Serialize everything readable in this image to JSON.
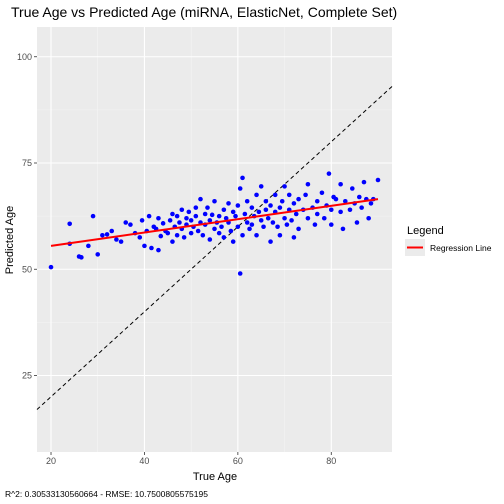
{
  "chart_data": {
    "type": "scatter",
    "title": "True Age vs Predicted Age (miRNA, ElasticNet, Complete Set)",
    "xlabel": "True Age",
    "ylabel": "Predicted Age",
    "xlim": [
      17,
      93
    ],
    "ylim": [
      7,
      107
    ],
    "x_ticks": [
      20,
      40,
      60,
      80
    ],
    "y_ticks": [
      25,
      50,
      75,
      100
    ],
    "grid": true,
    "point_color": "#0000ff",
    "points": [
      [
        20,
        50.5
      ],
      [
        24,
        60.7
      ],
      [
        24,
        56
      ],
      [
        26,
        53
      ],
      [
        26.5,
        52.8
      ],
      [
        28,
        55.5
      ],
      [
        29,
        62.5
      ],
      [
        30,
        53.5
      ],
      [
        31,
        58
      ],
      [
        32,
        58.2
      ],
      [
        33,
        59
      ],
      [
        34,
        57
      ],
      [
        35,
        56.5
      ],
      [
        36,
        61
      ],
      [
        37,
        60.5
      ],
      [
        38,
        58.5
      ],
      [
        39,
        57.5
      ],
      [
        39.5,
        61.5
      ],
      [
        40,
        55.5
      ],
      [
        40.5,
        59
      ],
      [
        41,
        62.5
      ],
      [
        41.5,
        55
      ],
      [
        42,
        60
      ],
      [
        42.5,
        59.5
      ],
      [
        43,
        54.5
      ],
      [
        43,
        62
      ],
      [
        43.5,
        57.8
      ],
      [
        44,
        60.8
      ],
      [
        44.5,
        59
      ],
      [
        45,
        58.5
      ],
      [
        45.5,
        61.5
      ],
      [
        46,
        63
      ],
      [
        46,
        56.5
      ],
      [
        46.5,
        60
      ],
      [
        47,
        62.5
      ],
      [
        47,
        58
      ],
      [
        47.5,
        61
      ],
      [
        48,
        59.5
      ],
      [
        48,
        64
      ],
      [
        48.5,
        57.5
      ],
      [
        49,
        62
      ],
      [
        49,
        60.5
      ],
      [
        49.5,
        63.5
      ],
      [
        50,
        58.5
      ],
      [
        50,
        61.5
      ],
      [
        50.5,
        60
      ],
      [
        51,
        64.5
      ],
      [
        51,
        62.5
      ],
      [
        51.5,
        59
      ],
      [
        52,
        61
      ],
      [
        52,
        66.5
      ],
      [
        52.5,
        58
      ],
      [
        53,
        63
      ],
      [
        53,
        60.5
      ],
      [
        53.5,
        64.5
      ],
      [
        54,
        57
      ],
      [
        54,
        61.5
      ],
      [
        54.5,
        62.8
      ],
      [
        55,
        59.5
      ],
      [
        55,
        66
      ],
      [
        55.5,
        61
      ],
      [
        56,
        62.5
      ],
      [
        56,
        58.5
      ],
      [
        56.5,
        60
      ],
      [
        57,
        64
      ],
      [
        57,
        57.5
      ],
      [
        57.5,
        62
      ],
      [
        58,
        61
      ],
      [
        58,
        65.5
      ],
      [
        58.5,
        59
      ],
      [
        59,
        63.5
      ],
      [
        59,
        56.5
      ],
      [
        59.5,
        62.5
      ],
      [
        60,
        60
      ],
      [
        60,
        65
      ],
      [
        60.5,
        49
      ],
      [
        60.5,
        69
      ],
      [
        61,
        71.5
      ],
      [
        61,
        58
      ],
      [
        61.5,
        63
      ],
      [
        62,
        61
      ],
      [
        62,
        66
      ],
      [
        62.5,
        59.5
      ],
      [
        63,
        64.5
      ],
      [
        63,
        60.5
      ],
      [
        63.5,
        62.5
      ],
      [
        64,
        67.5
      ],
      [
        64,
        58
      ],
      [
        64.5,
        63.5
      ],
      [
        65,
        61.5
      ],
      [
        65,
        69.5
      ],
      [
        65.5,
        60
      ],
      [
        66,
        64
      ],
      [
        66,
        66
      ],
      [
        66.5,
        62
      ],
      [
        67,
        56.5
      ],
      [
        67,
        65
      ],
      [
        67.5,
        61
      ],
      [
        68,
        63.5
      ],
      [
        68,
        67.5
      ],
      [
        68.5,
        60
      ],
      [
        69,
        64.5
      ],
      [
        69,
        58
      ],
      [
        69.5,
        66
      ],
      [
        70,
        62
      ],
      [
        70,
        69.5
      ],
      [
        70.5,
        60.5
      ],
      [
        71,
        64
      ],
      [
        71,
        67.5
      ],
      [
        71.5,
        61.5
      ],
      [
        72,
        65.5
      ],
      [
        72,
        57.5
      ],
      [
        72.5,
        63
      ],
      [
        73,
        66.5
      ],
      [
        73,
        59.5
      ],
      [
        74,
        64
      ],
      [
        74.5,
        67.5
      ],
      [
        75,
        62
      ],
      [
        75,
        70
      ],
      [
        76,
        64.5
      ],
      [
        76.5,
        60.5
      ],
      [
        77,
        66
      ],
      [
        77,
        63
      ],
      [
        78,
        68
      ],
      [
        78.5,
        62
      ],
      [
        79,
        65
      ],
      [
        79.5,
        72.5
      ],
      [
        80,
        64
      ],
      [
        80,
        60.5
      ],
      [
        80.5,
        67
      ],
      [
        81,
        66.5
      ],
      [
        82,
        63.5
      ],
      [
        82,
        70
      ],
      [
        82.5,
        59.5
      ],
      [
        83,
        66
      ],
      [
        84,
        64
      ],
      [
        84.5,
        69
      ],
      [
        85,
        65.5
      ],
      [
        85.5,
        61
      ],
      [
        86,
        67
      ],
      [
        86.5,
        64.5
      ],
      [
        87,
        70.5
      ],
      [
        87.5,
        66.5
      ],
      [
        88,
        62
      ],
      [
        88.5,
        65.5
      ],
      [
        89,
        66.5
      ],
      [
        90,
        71
      ]
    ],
    "regression": {
      "x": [
        20,
        90
      ],
      "y": [
        55.5,
        66.5
      ],
      "color": "#ff0000"
    },
    "identity_line": {
      "x": [
        17,
        93
      ],
      "y": [
        17,
        93
      ]
    },
    "legend": {
      "title": "Legend",
      "items": [
        {
          "label": "Regression Line",
          "color": "#ff0000"
        }
      ],
      "position": "right"
    },
    "footer": "R^2: 0.30533130560664 - RMSE: 10.7500805575195"
  }
}
